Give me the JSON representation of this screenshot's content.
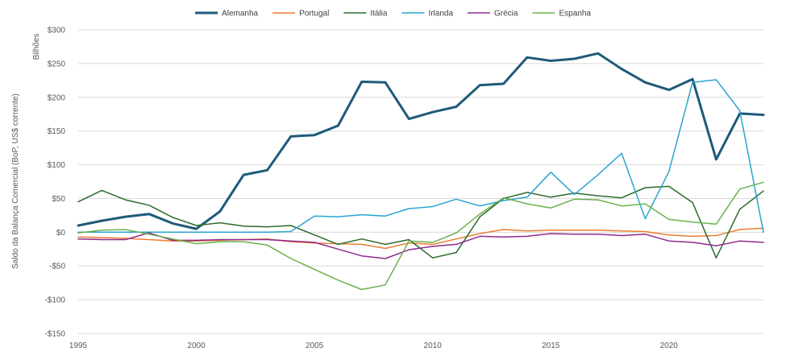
{
  "chart_data": {
    "type": "line",
    "title": "",
    "xlabel": "",
    "ylabel": "Saldo da Balança Comercial (BoP, US$ corrente)",
    "y_units_label": "Bilhões",
    "ylim": [
      -150,
      300
    ],
    "y_ticks": [
      300,
      250,
      200,
      150,
      100,
      50,
      0,
      -50,
      -100,
      -150
    ],
    "y_tick_labels": [
      "$300",
      "$250",
      "$200",
      "$150",
      "$100",
      "$50",
      "$0",
      "-$50",
      "-$100",
      "-$150"
    ],
    "xlim": [
      1995,
      2024
    ],
    "x_ticks": [
      1995,
      2000,
      2005,
      2010,
      2015,
      2020
    ],
    "x_tick_labels": [
      "1995",
      "2000",
      "2005",
      "2010",
      "2015",
      "2020"
    ],
    "grid": true,
    "legend_position": "top-center",
    "x": [
      1995,
      1996,
      1997,
      1998,
      1999,
      2000,
      2001,
      2002,
      2003,
      2004,
      2005,
      2006,
      2007,
      2008,
      2009,
      2010,
      2011,
      2012,
      2013,
      2014,
      2015,
      2016,
      2017,
      2018,
      2019,
      2020,
      2021,
      2022,
      2023,
      2024
    ],
    "series": [
      {
        "name": "Alemanha",
        "color": "#1f5a7a",
        "width": 3,
        "values": [
          10,
          17,
          23,
          27,
          13,
          5,
          31,
          85,
          92,
          142,
          144,
          158,
          223,
          222,
          168,
          178,
          186,
          218,
          220,
          259,
          254,
          257,
          265,
          242,
          222,
          211,
          227,
          108,
          176,
          174
        ]
      },
      {
        "name": "Portugal",
        "color": "#ed7d31",
        "width": 1.5,
        "values": [
          -7,
          -8,
          -9,
          -11,
          -13,
          -13,
          -12,
          -11,
          -10,
          -14,
          -16,
          -17,
          -18,
          -24,
          -16,
          -18,
          -10,
          -2,
          4,
          2,
          3,
          3,
          3,
          2,
          1,
          -4,
          -6,
          -5,
          4,
          6
        ]
      },
      {
        "name": "Itália",
        "color": "#2d6a2d",
        "width": 1.5,
        "values": [
          45,
          62,
          48,
          40,
          22,
          10,
          14,
          9,
          8,
          10,
          -4,
          -18,
          -10,
          -18,
          -11,
          -38,
          -30,
          23,
          50,
          59,
          52,
          58,
          54,
          51,
          66,
          68,
          44,
          -38,
          34,
          61
        ]
      },
      {
        "name": "Irlanda",
        "color": "#2aa4d1",
        "width": 1.5,
        "values": [
          0,
          0,
          0,
          0,
          0,
          0,
          0,
          0,
          0,
          1,
          24,
          23,
          26,
          24,
          35,
          38,
          49,
          39,
          47,
          52,
          89,
          56,
          85,
          117,
          20,
          90,
          222,
          226,
          180,
          0
        ]
      },
      {
        "name": "Grécia",
        "color": "#8e2a8e",
        "width": 1.5,
        "values": [
          -10,
          -11,
          -11,
          -1,
          -12,
          -12,
          -11,
          -11,
          -11,
          -13,
          -15,
          -25,
          -35,
          -39,
          -26,
          -21,
          -18,
          -6,
          -7,
          -6,
          -2,
          -3,
          -3,
          -5,
          -3,
          -13,
          -15,
          -20,
          -13,
          -15
        ]
      },
      {
        "name": "Espanha",
        "color": "#6ab04c",
        "width": 1.5,
        "values": [
          -1,
          3,
          4,
          -3,
          -10,
          -17,
          -14,
          -14,
          -19,
          -39,
          -55,
          -71,
          -85,
          -78,
          -13,
          -15,
          -1,
          27,
          51,
          42,
          36,
          49,
          48,
          39,
          42,
          19,
          15,
          12,
          64,
          74
        ]
      }
    ]
  }
}
